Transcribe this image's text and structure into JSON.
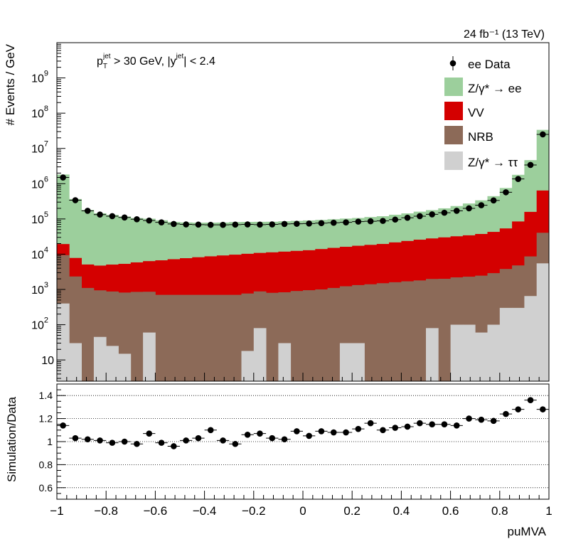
{
  "lumi_label": "24 fb⁻¹ (13 TeV)",
  "cut_label": "p_T^jet > 30 GeV,  |y^jet| < 2.4",
  "chart_data": [
    {
      "type": "bar",
      "subtype": "stacked-histogram-with-data-points",
      "ylabel": "# Events / GeV",
      "yscale": "log",
      "ylim": [
        2.5,
        10000000000.0
      ],
      "xlim": [
        -1,
        1
      ],
      "bin_edges": [
        -1.0,
        -0.95,
        -0.9,
        -0.85,
        -0.8,
        -0.75,
        -0.7,
        -0.65,
        -0.6,
        -0.55,
        -0.5,
        -0.45,
        -0.4,
        -0.35,
        -0.3,
        -0.25,
        -0.2,
        -0.15,
        -0.1,
        -0.05,
        0.0,
        0.05,
        0.1,
        0.15,
        0.2,
        0.25,
        0.3,
        0.35,
        0.4,
        0.45,
        0.5,
        0.55,
        0.6,
        0.65,
        0.7,
        0.75,
        0.8,
        0.85,
        0.9,
        0.95,
        1.0
      ],
      "ytick_labels": [
        "10",
        "10²",
        "10³",
        "10⁴",
        "10⁵",
        "10⁶",
        "10⁷",
        "10⁸",
        "10⁹"
      ],
      "ytick_values": [
        10,
        100,
        1000,
        10000,
        100000,
        1000000,
        10000000,
        100000000,
        1000000000
      ],
      "legend_position": "top-right",
      "series": [
        {
          "name": "Z/γ* → ττ",
          "color": "#d0d0d0",
          "values": [
            400,
            30,
            2,
            45,
            25,
            15,
            2,
            60,
            2,
            2,
            2,
            2,
            2,
            2,
            2,
            18,
            80,
            2,
            30,
            2,
            2,
            2,
            2,
            30,
            30,
            2,
            2,
            2,
            2,
            2,
            80,
            2,
            100,
            100,
            60,
            100,
            300,
            300,
            650,
            5500
          ]
        },
        {
          "name": "NRB",
          "color": "#8c6a58",
          "values": [
            9000,
            2300,
            1100,
            900,
            850,
            800,
            850,
            800,
            700,
            700,
            700,
            700,
            700,
            700,
            700,
            750,
            800,
            800,
            800,
            900,
            950,
            1000,
            1100,
            1200,
            1300,
            1400,
            1500,
            1600,
            1700,
            1800,
            1900,
            2000,
            2100,
            2200,
            2400,
            2800,
            3500,
            4500,
            8000,
            35000
          ]
        },
        {
          "name": "VV",
          "color": "#d40000",
          "values": [
            10000,
            5500,
            4000,
            3800,
            4200,
            4500,
            5000,
            5500,
            6000,
            6500,
            7000,
            7500,
            8000,
            8500,
            9000,
            9500,
            10000,
            10500,
            11000,
            11500,
            12000,
            13000,
            14000,
            15000,
            16000,
            17000,
            18000,
            20000,
            22000,
            24000,
            26000,
            28000,
            30000,
            32000,
            35000,
            40000,
            50000,
            80000,
            150000,
            600000
          ]
        },
        {
          "name": "Z/γ* → ee",
          "color": "#9ccf9c",
          "values": [
            1800000,
            360000,
            175000,
            140000,
            125000,
            112000,
            100000,
            95000,
            85000,
            75000,
            72000,
            70000,
            70000,
            70000,
            72000,
            72000,
            72000,
            72000,
            74000,
            76000,
            78000,
            80000,
            83000,
            86000,
            89000,
            95000,
            100000,
            110000,
            120000,
            135000,
            150000,
            170000,
            200000,
            240000,
            300000,
            400000,
            700000,
            1700000,
            4500000,
            33000000
          ]
        },
        {
          "name": "ee Data",
          "color": "#000000",
          "marker": "point",
          "values": [
            1500000,
            340000,
            170000,
            133000,
            120000,
            110000,
            98000,
            90000,
            80000,
            72000,
            70000,
            69000,
            68000,
            68000,
            69000,
            70000,
            69000,
            70000,
            72000,
            73000,
            74000,
            76000,
            78000,
            80000,
            84000,
            86000,
            88000,
            96000,
            108000,
            120000,
            135000,
            150000,
            170000,
            200000,
            245000,
            335000,
            570000,
            1360000,
            3400000,
            25000000
          ]
        }
      ]
    },
    {
      "type": "scatter",
      "xlabel": "puMVA",
      "ylabel": "Simulation/Data",
      "ylim": [
        0.5,
        1.5
      ],
      "xlim": [
        -1,
        1
      ],
      "xticks": [
        -1,
        -0.8,
        -0.6,
        -0.4,
        -0.2,
        0,
        0.2,
        0.4,
        0.6,
        0.8,
        1
      ],
      "xtick_labels": [
        "−1",
        "−0.8",
        "−0.6",
        "−0.4",
        "−0.2",
        "0",
        "0.2",
        "0.4",
        "0.6",
        "0.8",
        "1"
      ],
      "yticks": [
        0.6,
        0.8,
        1,
        1.2,
        1.4
      ],
      "ytick_labels": [
        "0.6",
        "0.8",
        "1",
        "1.2",
        "1.4"
      ],
      "grid": "horizontal-dotted",
      "x": [
        -0.975,
        -0.925,
        -0.875,
        -0.825,
        -0.775,
        -0.725,
        -0.675,
        -0.625,
        -0.575,
        -0.525,
        -0.475,
        -0.425,
        -0.375,
        -0.325,
        -0.275,
        -0.225,
        -0.175,
        -0.125,
        -0.075,
        -0.025,
        0.025,
        0.075,
        0.125,
        0.175,
        0.225,
        0.275,
        0.325,
        0.375,
        0.425,
        0.475,
        0.525,
        0.575,
        0.625,
        0.675,
        0.725,
        0.775,
        0.825,
        0.875,
        0.925,
        0.975
      ],
      "values": [
        1.14,
        1.03,
        1.02,
        1.01,
        0.99,
        1.0,
        0.98,
        1.07,
        0.99,
        0.96,
        1.01,
        1.03,
        1.1,
        1.01,
        0.98,
        1.06,
        1.07,
        1.03,
        1.02,
        1.09,
        1.05,
        1.09,
        1.08,
        1.08,
        1.11,
        1.16,
        1.1,
        1.12,
        1.13,
        1.16,
        1.15,
        1.15,
        1.14,
        1.2,
        1.19,
        1.18,
        1.24,
        1.28,
        1.36,
        1.28
      ]
    }
  ]
}
